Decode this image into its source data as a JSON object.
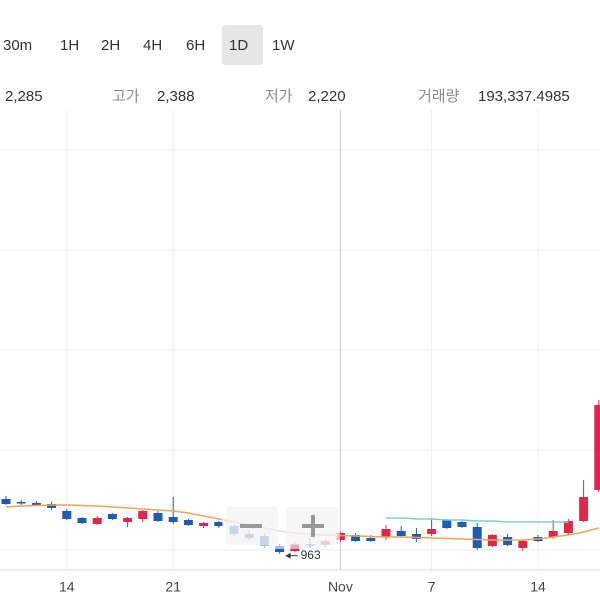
{
  "toolbar": {
    "intervals": [
      "30m",
      "1H",
      "2H",
      "4H",
      "6H",
      "1D",
      "1W"
    ],
    "selected": "1D"
  },
  "info": {
    "current": "2,285",
    "high_label": "고가",
    "high": "2,388",
    "low_label": "저가",
    "low": "2,220",
    "volume_label": "거래량",
    "volume": "193,337.4985"
  },
  "chart_data": {
    "type": "candlestick",
    "categories": [
      null,
      null,
      null,
      null,
      "14",
      null,
      null,
      null,
      null,
      null,
      null,
      "21",
      null,
      null,
      null,
      null,
      null,
      null,
      null,
      null,
      null,
      null,
      "Nov",
      null,
      null,
      null,
      null,
      null,
      "7",
      null,
      null,
      null,
      null,
      null,
      null,
      "14",
      null,
      null,
      null,
      null
    ],
    "candles": [
      {
        "open": 1510,
        "high": 1540,
        "low": 1450,
        "close": 1460
      },
      {
        "open": 1480,
        "high": 1500,
        "low": 1450,
        "close": 1470
      },
      {
        "open": 1470,
        "high": 1490,
        "low": 1460,
        "close": 1450
      },
      {
        "open": 1460,
        "high": 1480,
        "low": 1400,
        "close": 1420
      },
      {
        "open": 1390,
        "high": 1410,
        "low": 1300,
        "close": 1310
      },
      {
        "open": 1320,
        "high": 1330,
        "low": 1260,
        "close": 1270
      },
      {
        "open": 1260,
        "high": 1340,
        "low": 1250,
        "close": 1320
      },
      {
        "open": 1360,
        "high": 1370,
        "low": 1300,
        "close": 1310
      },
      {
        "open": 1280,
        "high": 1330,
        "low": 1230,
        "close": 1320
      },
      {
        "open": 1310,
        "high": 1400,
        "low": 1280,
        "close": 1390
      },
      {
        "open": 1370,
        "high": 1390,
        "low": 1280,
        "close": 1290
      },
      {
        "open": 1330,
        "high": 1530,
        "low": 1260,
        "close": 1280
      },
      {
        "open": 1300,
        "high": 1310,
        "low": 1240,
        "close": 1250
      },
      {
        "open": 1240,
        "high": 1280,
        "low": 1220,
        "close": 1270
      },
      {
        "open": 1280,
        "high": 1290,
        "low": 1220,
        "close": 1240
      },
      {
        "open": 1240,
        "high": 1260,
        "low": 1140,
        "close": 1160
      },
      {
        "open": 1160,
        "high": 1200,
        "low": 1100,
        "close": 1120
      },
      {
        "open": 1140,
        "high": 1160,
        "low": 1020,
        "close": 1040
      },
      {
        "open": 1040,
        "high": 1060,
        "low": 963,
        "close": 980
      },
      {
        "open": 990,
        "high": 1080,
        "low": 980,
        "close": 1060
      },
      {
        "open": 1060,
        "high": 1120,
        "low": 1020,
        "close": 1050
      },
      {
        "open": 1050,
        "high": 1100,
        "low": 1030,
        "close": 1090
      },
      {
        "open": 1100,
        "high": 1180,
        "low": 1080,
        "close": 1170
      },
      {
        "open": 1150,
        "high": 1170,
        "low": 1080,
        "close": 1090
      },
      {
        "open": 1120,
        "high": 1150,
        "low": 1080,
        "close": 1090
      },
      {
        "open": 1130,
        "high": 1250,
        "low": 1100,
        "close": 1210
      },
      {
        "open": 1190,
        "high": 1240,
        "low": 1130,
        "close": 1140
      },
      {
        "open": 1160,
        "high": 1220,
        "low": 1080,
        "close": 1110
      },
      {
        "open": 1160,
        "high": 1320,
        "low": 1140,
        "close": 1210
      },
      {
        "open": 1300,
        "high": 1310,
        "low": 1210,
        "close": 1220
      },
      {
        "open": 1280,
        "high": 1290,
        "low": 1220,
        "close": 1230
      },
      {
        "open": 1230,
        "high": 1270,
        "low": 1000,
        "close": 1020
      },
      {
        "open": 1040,
        "high": 1160,
        "low": 1030,
        "close": 1150
      },
      {
        "open": 1130,
        "high": 1160,
        "low": 1040,
        "close": 1050
      },
      {
        "open": 1020,
        "high": 1100,
        "low": 990,
        "close": 1090
      },
      {
        "open": 1130,
        "high": 1150,
        "low": 1080,
        "close": 1090
      },
      {
        "open": 1130,
        "high": 1300,
        "low": 1110,
        "close": 1190
      },
      {
        "open": 1170,
        "high": 1310,
        "low": 1150,
        "close": 1290
      },
      {
        "open": 1290,
        "high": 1700,
        "low": 1280,
        "close": 1530
      },
      {
        "open": 1600,
        "high": 2500,
        "low": 1580,
        "close": 2450
      }
    ],
    "up_color": "#e0264a",
    "down_color": "#1d5cb4",
    "overlays": [
      {
        "color": "#f0a45c",
        "values": [
          1430,
          1440,
          1445,
          1450,
          1450,
          1445,
          1440,
          1430,
          1420,
          1410,
          1400,
          1390,
          1370,
          1340,
          1310,
          1280,
          1250,
          1220,
          1190,
          1170,
          1160,
          1150,
          1145,
          1140,
          1135,
          1130,
          1130,
          1125,
          1120,
          1115,
          1110,
          1105,
          1100,
          1100,
          1100,
          1110,
          1130,
          1150,
          1180,
          1220
        ]
      },
      {
        "color": "#7fcfcf",
        "values": [
          null,
          null,
          null,
          null,
          null,
          null,
          null,
          null,
          null,
          null,
          null,
          null,
          null,
          null,
          null,
          null,
          null,
          null,
          null,
          null,
          null,
          null,
          null,
          null,
          null,
          1320,
          1320,
          1310,
          1310,
          1300,
          1300,
          1290,
          1290,
          1280,
          1280,
          1280,
          1280,
          1280,
          null,
          null
        ]
      }
    ],
    "ylim": [
      800,
      5400
    ],
    "ygrid": [
      1000,
      2000,
      3000,
      4000,
      5000
    ],
    "grid": true
  }
}
